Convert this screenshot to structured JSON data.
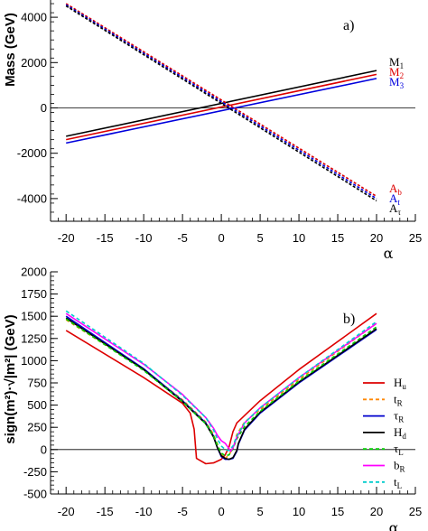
{
  "chart_data": [
    {
      "panel": "a)",
      "type": "line",
      "ylabel": "Mass (GeV)",
      "xlabel": "α",
      "xlim": [
        -22,
        25
      ],
      "ylim": [
        -5000,
        5000
      ],
      "xticks": [
        -20,
        -15,
        -10,
        -5,
        0,
        5,
        10,
        15,
        20,
        25
      ],
      "yticks": [
        -4000,
        -2000,
        0,
        2000,
        4000
      ],
      "zero_line": true,
      "series": [
        {
          "name": "M1",
          "label": "M",
          "sub": "1",
          "color": "#000000",
          "dash": "solid",
          "x": [
            -20,
            20
          ],
          "y": [
            -1250,
            1650
          ]
        },
        {
          "name": "M2",
          "label": "M",
          "sub": "2",
          "color": "#dd0000",
          "dash": "solid",
          "x": [
            -20,
            20
          ],
          "y": [
            -1400,
            1480
          ]
        },
        {
          "name": "M3",
          "label": "M",
          "sub": "3",
          "color": "#0000dd",
          "dash": "solid",
          "x": [
            -20,
            20
          ],
          "y": [
            -1550,
            1300
          ]
        },
        {
          "name": "Ab",
          "label": "A",
          "sub": "b",
          "color": "#dd0000",
          "dash": "3,2",
          "x": [
            -20,
            20
          ],
          "y": [
            4600,
            -3900
          ]
        },
        {
          "name": "At",
          "label": "A",
          "sub": "t",
          "color": "#0000dd",
          "dash": "3,2",
          "x": [
            -20,
            20
          ],
          "y": [
            4550,
            -4000
          ]
        },
        {
          "name": "Aτ",
          "label": "A",
          "sub": "τ",
          "color": "#000000",
          "dash": "3,2",
          "x": [
            -20,
            20
          ],
          "y": [
            4500,
            -4100
          ]
        }
      ],
      "legend_groups": [
        {
          "placement": "right-middle",
          "items": [
            "M1",
            "M2",
            "M3"
          ]
        },
        {
          "placement": "bottom-right",
          "items": [
            "Ab",
            "At",
            "Aτ"
          ]
        }
      ]
    },
    {
      "panel": "b)",
      "type": "line",
      "ylabel": "sign(m²)·√|m²| (GeV)",
      "xlabel": "α",
      "xlim": [
        -22,
        25
      ],
      "ylim": [
        -500,
        2000
      ],
      "xticks": [
        -20,
        -15,
        -10,
        -5,
        0,
        5,
        10,
        15,
        20,
        25
      ],
      "yticks": [
        -500,
        -250,
        0,
        250,
        500,
        750,
        1000,
        1250,
        1500,
        1750,
        2000
      ],
      "zero_line": true,
      "legend_placement": "right",
      "series": [
        {
          "name": "Hu",
          "label": "H",
          "sub": "u",
          "color": "#dd0000",
          "dash": "solid",
          "x": [
            -20,
            -10,
            -5,
            -4,
            -3.5,
            -3.2,
            -2,
            -1,
            0,
            0.5,
            1,
            1.5,
            2,
            5,
            10,
            20
          ],
          "y": [
            1340,
            810,
            520,
            410,
            230,
            -100,
            -160,
            -150,
            -110,
            -60,
            30,
            200,
            300,
            550,
            900,
            1530
          ]
        },
        {
          "name": "tR",
          "label": "t",
          "sub": "R",
          "color": "#ff8800",
          "dash": "4,3",
          "x": [
            -20,
            -10,
            -5,
            -2,
            -1,
            -0.5,
            0,
            0.5,
            1,
            1.5,
            2,
            3,
            5,
            10,
            20
          ],
          "y": [
            1460,
            900,
            560,
            310,
            170,
            60,
            -60,
            -100,
            -60,
            20,
            170,
            310,
            450,
            790,
            1420
          ]
        },
        {
          "name": "τR",
          "label": "τ",
          "sub": "R",
          "color": "#0000cc",
          "dash": "solid",
          "x": [
            -20,
            -10,
            -5,
            -2,
            -1,
            -0.5,
            0,
            0.5,
            1,
            1.5,
            2,
            2.2,
            3,
            5,
            10,
            20
          ],
          "y": [
            1500,
            910,
            550,
            300,
            150,
            20,
            -80,
            -110,
            -110,
            -100,
            -20,
            60,
            220,
            410,
            750,
            1350
          ]
        },
        {
          "name": "Hd",
          "label": "H",
          "sub": "d",
          "color": "#000000",
          "dash": "solid",
          "x": [
            -20,
            -10,
            -5,
            -2,
            -1,
            -0.5,
            0,
            0.5,
            1,
            1.5,
            2,
            2.2,
            3,
            5,
            10,
            20
          ],
          "y": [
            1480,
            900,
            540,
            290,
            140,
            20,
            -70,
            -100,
            -110,
            -90,
            -10,
            70,
            230,
            420,
            760,
            1360
          ]
        },
        {
          "name": "τL",
          "label": "τ",
          "sub": "L",
          "color": "#00cc00",
          "dash": "4,3",
          "x": [
            -20,
            -10,
            -5,
            -2,
            -1,
            -0.5,
            0,
            0.5,
            1,
            1.5,
            2,
            3,
            5,
            10,
            20
          ],
          "y": [
            1470,
            890,
            540,
            290,
            150,
            50,
            -40,
            -70,
            -60,
            10,
            120,
            260,
            430,
            770,
            1380
          ]
        },
        {
          "name": "bR",
          "label": "b",
          "sub": "R",
          "color": "#ff00ff",
          "dash": "solid",
          "x": [
            -20,
            -10,
            -5,
            -2,
            -1,
            -0.5,
            0,
            0.5,
            1,
            1.2,
            1.5,
            2,
            3,
            5,
            10,
            20
          ],
          "y": [
            1530,
            960,
            620,
            360,
            240,
            160,
            100,
            70,
            10,
            -20,
            20,
            140,
            300,
            470,
            810,
            1420
          ]
        },
        {
          "name": "tL",
          "label": "t",
          "sub": "L",
          "color": "#00cccc",
          "dash": "4,3",
          "x": [
            -20,
            -10,
            -5,
            -2,
            -1,
            -0.5,
            0,
            0.5,
            1,
            1.5,
            2,
            3,
            5,
            10,
            20
          ],
          "y": [
            1560,
            970,
            610,
            360,
            220,
            120,
            40,
            0,
            -10,
            40,
            150,
            300,
            470,
            810,
            1440
          ]
        }
      ]
    }
  ]
}
